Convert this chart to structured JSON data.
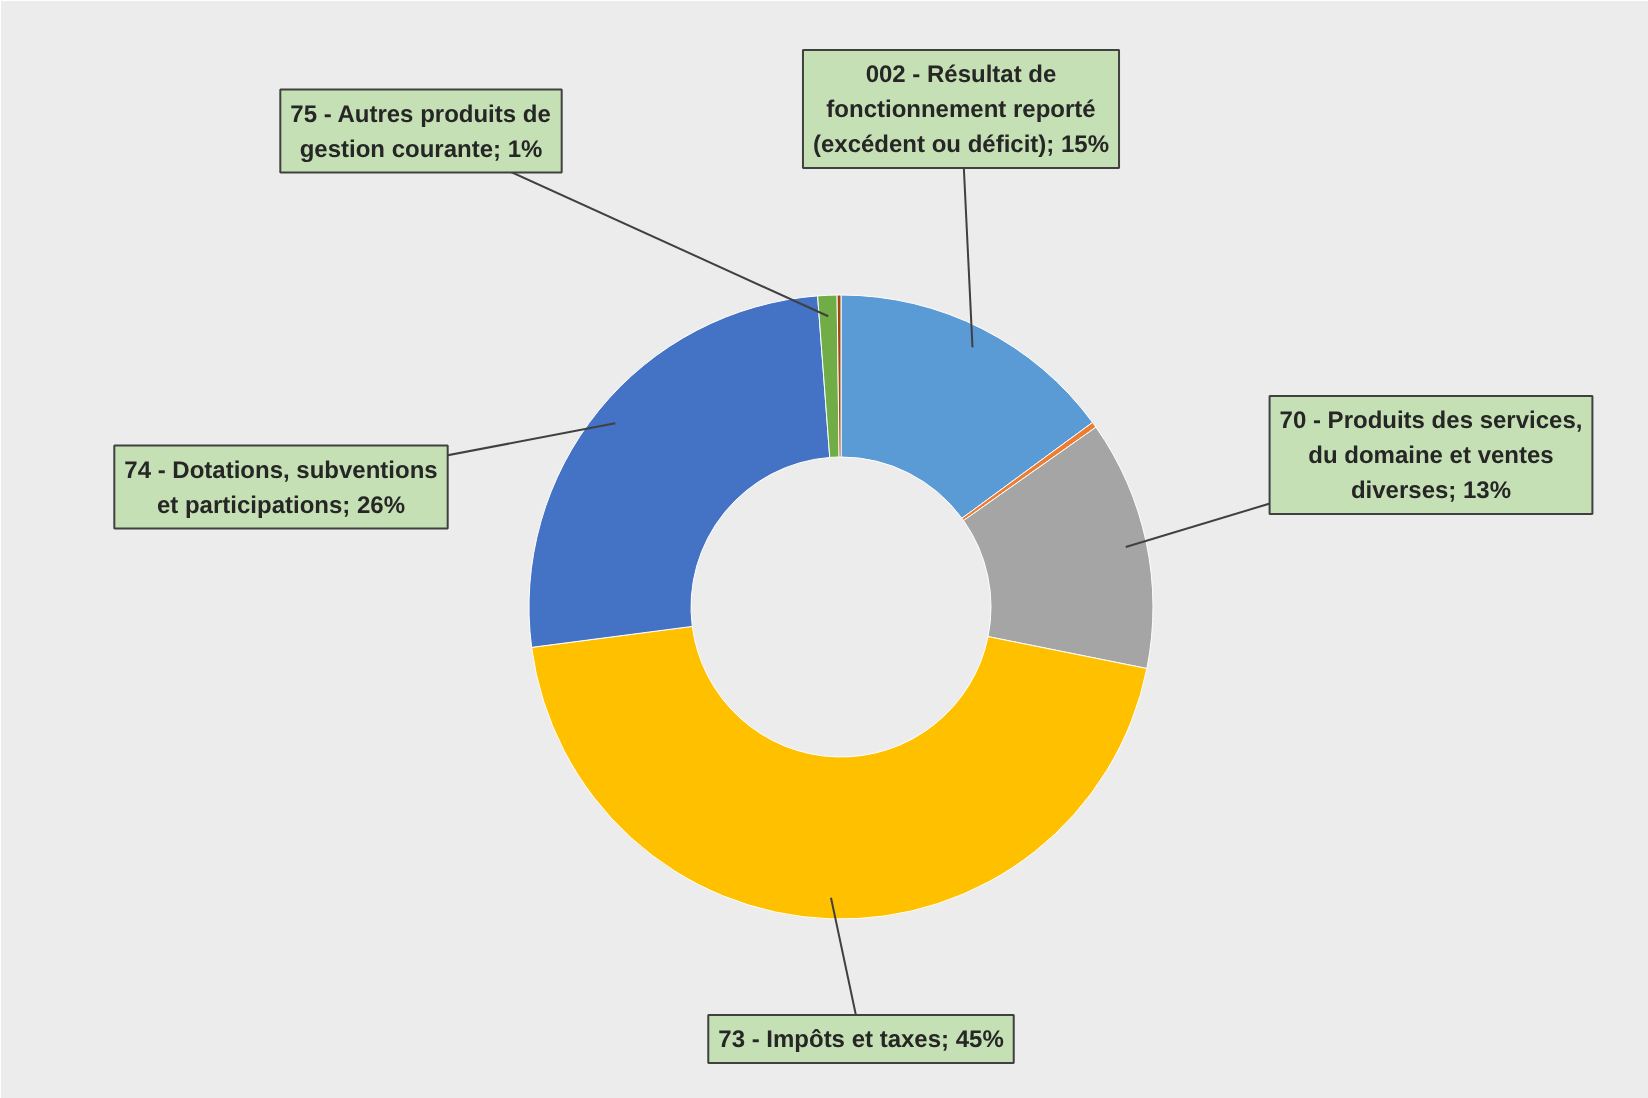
{
  "chart_data": {
    "type": "donut",
    "categories": [
      "002 - Résultat de fonctionnement reporté (excédent ou déficit)",
      null,
      "70 - Produits des services, du domaine et ventes diverses",
      "73 - Impôts et taxes",
      "74 - Dotations, subventions et participations",
      "75 - Autres produits de gestion courante",
      null
    ],
    "values": [
      15,
      0.3,
      13,
      45,
      26,
      1,
      0.2
    ],
    "value_labels": [
      "15%",
      null,
      "13%",
      "45%",
      "26%",
      "1%",
      null
    ],
    "colors": [
      "#5b9bd5",
      "#ed7d31",
      "#a5a5a5",
      "#ffc000",
      "#4472c4",
      "#70ad47",
      "#9e480e"
    ]
  }
}
